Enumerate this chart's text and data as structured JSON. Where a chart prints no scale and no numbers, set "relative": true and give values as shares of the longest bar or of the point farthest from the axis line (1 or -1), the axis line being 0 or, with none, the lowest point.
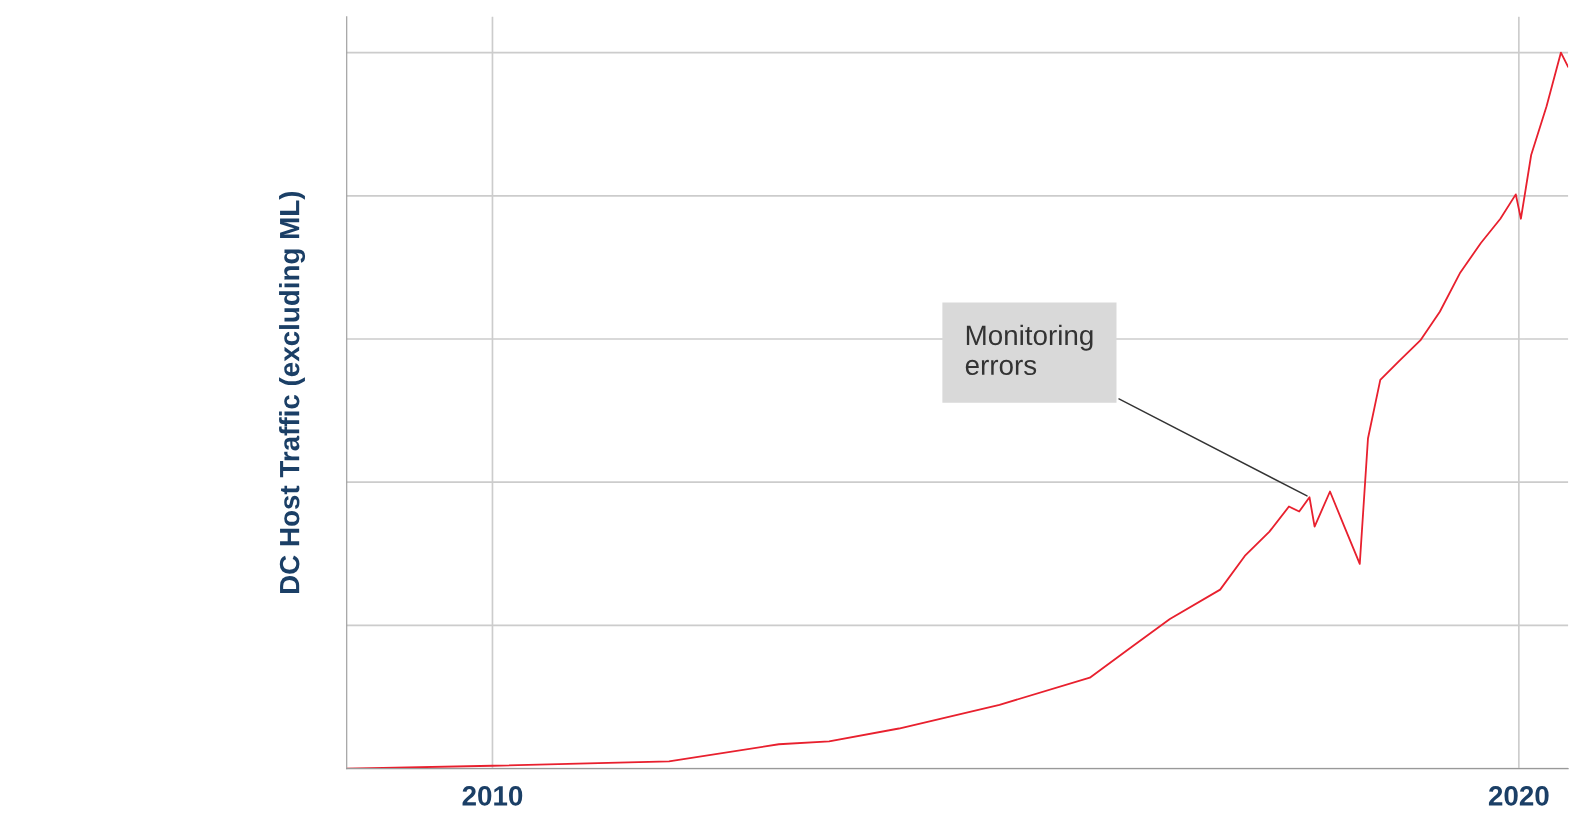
{
  "chart_data": {
    "type": "line",
    "ylabel": "DC Host Traffic (excluding ML)",
    "relative": true,
    "x": [
      2008.58,
      2010.0,
      2011.72,
      2012.79,
      2013.28,
      2013.96,
      2014.94,
      2015.82,
      2016.21,
      2016.6,
      2017.09,
      2017.33,
      2017.57,
      2017.76,
      2017.86,
      2017.96,
      2018.01,
      2018.16,
      2018.3,
      2018.45,
      2018.53,
      2018.65,
      2018.84,
      2019.04,
      2019.23,
      2019.43,
      2019.63,
      2019.82,
      2019.97,
      2020.02,
      2020.12,
      2020.27,
      2020.41,
      2020.48
    ],
    "series": [
      {
        "color": "#e8202e",
        "values": [
          0.0,
          0.004,
          0.01,
          0.034,
          0.038,
          0.056,
          0.089,
          0.127,
          0.168,
          0.209,
          0.25,
          0.297,
          0.331,
          0.366,
          0.359,
          0.379,
          0.338,
          0.387,
          0.338,
          0.286,
          0.461,
          0.543,
          0.57,
          0.598,
          0.638,
          0.693,
          0.734,
          0.768,
          0.802,
          0.768,
          0.857,
          0.925,
          1.0,
          0.98
        ]
      }
    ],
    "xlim": [
      2008.58,
      2020.48
    ],
    "xticks": [
      2010,
      2020
    ],
    "grid": true,
    "annotations": [
      {
        "text": "Monitoring\nerrors",
        "x": 2017.96,
        "y": 0.379
      }
    ]
  }
}
